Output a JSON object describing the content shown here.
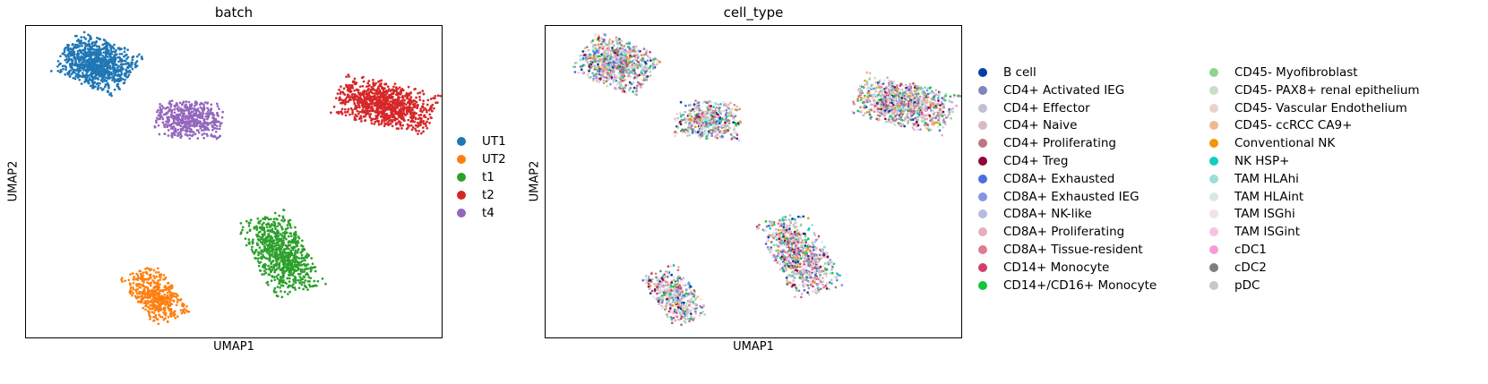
{
  "chart_data": [
    {
      "type": "scatter",
      "title": "batch",
      "xlabel": "UMAP1",
      "ylabel": "UMAP2",
      "grid": false,
      "legend_placement": "right",
      "legend": [
        {
          "name": "UT1",
          "color": "#1f77b4"
        },
        {
          "name": "UT2",
          "color": "#ff7f0e"
        },
        {
          "name": "t1",
          "color": "#2ca02c"
        },
        {
          "name": "t2",
          "color": "#d62728"
        },
        {
          "name": "t4",
          "color": "#9467bd"
        }
      ],
      "series": [
        {
          "name": "UT1",
          "x": 0.17,
          "y": 0.88,
          "spread_x": 0.09,
          "spread_y": 0.075,
          "tilt": -28,
          "points": 900
        },
        {
          "name": "UT2",
          "x": 0.31,
          "y": 0.14,
          "spread_x": 0.09,
          "spread_y": 0.05,
          "tilt": -62,
          "points": 450
        },
        {
          "name": "t1",
          "x": 0.61,
          "y": 0.27,
          "spread_x": 0.13,
          "spread_y": 0.065,
          "tilt": -68,
          "points": 800
        },
        {
          "name": "t2",
          "x": 0.86,
          "y": 0.75,
          "spread_x": 0.12,
          "spread_y": 0.07,
          "tilt": -18,
          "points": 1000
        },
        {
          "name": "t4",
          "x": 0.39,
          "y": 0.7,
          "spread_x": 0.08,
          "spread_y": 0.06,
          "tilt": -5,
          "points": 500
        }
      ]
    },
    {
      "type": "scatter",
      "title": "cell_type",
      "xlabel": "UMAP1",
      "ylabel": "UMAP2",
      "grid": false,
      "legend_placement": "right",
      "legend": [
        {
          "name": "B cell",
          "color": "#023fa5"
        },
        {
          "name": "CD4+ Activated IEG",
          "color": "#7d87b9"
        },
        {
          "name": "CD4+ Effector",
          "color": "#bec1d4"
        },
        {
          "name": "CD4+ Naive",
          "color": "#d6bcc0"
        },
        {
          "name": "CD4+ Proliferating",
          "color": "#bb7784"
        },
        {
          "name": "CD4+ Treg",
          "color": "#8e063b"
        },
        {
          "name": "CD8A+ Exhausted",
          "color": "#4a6fe3"
        },
        {
          "name": "CD8A+ Exhausted IEG",
          "color": "#8595e1"
        },
        {
          "name": "CD8A+ NK-like",
          "color": "#b5bbe3"
        },
        {
          "name": "CD8A+ Proliferating",
          "color": "#e6afb9"
        },
        {
          "name": "CD8A+ Tissue-resident",
          "color": "#e07b91"
        },
        {
          "name": "CD14+ Monocyte",
          "color": "#d33f6a"
        },
        {
          "name": "CD14+/CD16+ Monocyte",
          "color": "#11c638"
        },
        {
          "name": "CD45- Myofibroblast",
          "color": "#8dd593"
        },
        {
          "name": "CD45- PAX8+ renal epithelium",
          "color": "#c6dec7"
        },
        {
          "name": "CD45- Vascular Endothelium",
          "color": "#ead3c6"
        },
        {
          "name": "CD45- ccRCC CA9+",
          "color": "#f0b98d"
        },
        {
          "name": "Conventional NK",
          "color": "#ef9708"
        },
        {
          "name": "NK HSP+",
          "color": "#0fcfc0"
        },
        {
          "name": "TAM HLAhi",
          "color": "#9cded6"
        },
        {
          "name": "TAM HLAint",
          "color": "#d5eae7"
        },
        {
          "name": "TAM ISGhi",
          "color": "#f3e1eb"
        },
        {
          "name": "TAM ISGint",
          "color": "#f6c4e1"
        },
        {
          "name": "cDC1",
          "color": "#f79cd4"
        },
        {
          "name": "cDC2",
          "color": "#7f7f7f"
        },
        {
          "name": "pDC",
          "color": "#c7c7c7"
        }
      ],
      "clusters": [
        {
          "x": 0.17,
          "y": 0.88,
          "spread_x": 0.09,
          "spread_y": 0.075,
          "tilt": -28,
          "points": 900
        },
        {
          "x": 0.31,
          "y": 0.14,
          "spread_x": 0.09,
          "spread_y": 0.05,
          "tilt": -62,
          "points": 450
        },
        {
          "x": 0.61,
          "y": 0.27,
          "spread_x": 0.13,
          "spread_y": 0.065,
          "tilt": -68,
          "points": 800
        },
        {
          "x": 0.86,
          "y": 0.75,
          "spread_x": 0.12,
          "spread_y": 0.07,
          "tilt": -18,
          "points": 1000
        },
        {
          "x": 0.39,
          "y": 0.7,
          "spread_x": 0.08,
          "spread_y": 0.06,
          "tilt": -5,
          "points": 500
        }
      ]
    }
  ]
}
